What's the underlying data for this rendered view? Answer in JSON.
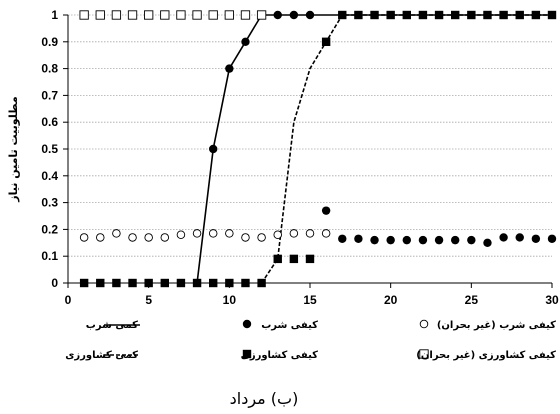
{
  "chart_data": {
    "type": "line",
    "caption": "(ب) مرداد",
    "ylabel": "مطلوبیت تامین نیاز",
    "xlim": [
      0,
      30
    ],
    "ylim": [
      0,
      1
    ],
    "xticks": [
      0,
      5,
      10,
      15,
      20,
      25,
      30
    ],
    "yticks": [
      0,
      0.1,
      0.2,
      0.3,
      0.4,
      0.5,
      0.6,
      0.7,
      0.8,
      0.9,
      1
    ],
    "grid": "horizontal",
    "legend_position": "bottom",
    "series": [
      {
        "name": "کمی شرب",
        "style": "solid-line",
        "color": "#000000",
        "x": [
          8,
          9,
          10,
          11,
          12,
          30
        ],
        "y": [
          0,
          0.5,
          0.8,
          0.9,
          1,
          1
        ]
      },
      {
        "name": "کمی کشاورزی",
        "style": "dashed-line",
        "color": "#000000",
        "x": [
          12,
          13,
          14,
          15,
          16,
          17,
          30
        ],
        "y": [
          0,
          0.09,
          0.6,
          0.8,
          0.9,
          1,
          1
        ]
      },
      {
        "name": "کیفی شرب",
        "style": "filled-circle",
        "color": "#000000",
        "x": [
          9,
          10,
          11,
          12,
          13,
          14,
          15,
          16,
          17,
          18,
          19,
          20,
          21,
          22,
          23,
          24,
          25,
          26,
          27,
          28,
          29,
          30
        ],
        "y": [
          0.5,
          0.8,
          0.9,
          1,
          1,
          1,
          1,
          0.27,
          0.165,
          0.165,
          0.16,
          0.16,
          0.16,
          0.16,
          0.16,
          0.16,
          0.16,
          0.15,
          0.17,
          0.17,
          0.165,
          0.165
        ]
      },
      {
        "name": "کیفی کشاورزی",
        "style": "filled-square",
        "color": "#000000",
        "x": [
          1,
          2,
          3,
          4,
          5,
          6,
          7,
          8,
          9,
          10,
          11,
          12,
          13,
          14,
          15,
          16,
          17,
          18,
          19,
          20,
          21,
          22,
          23,
          24,
          25,
          26,
          27,
          28,
          29,
          30
        ],
        "y": [
          0,
          0,
          0,
          0,
          0,
          0,
          0,
          0,
          0,
          0,
          0,
          0,
          0.09,
          0.09,
          0.09,
          0.9,
          1,
          1,
          1,
          1,
          1,
          1,
          1,
          1,
          1,
          1,
          1,
          1,
          1,
          1
        ]
      },
      {
        "name": "کیفی شرب (غیر بحران)",
        "style": "open-circle",
        "color": "#000000",
        "x": [
          1,
          2,
          3,
          4,
          5,
          6,
          7,
          8,
          9,
          10,
          11,
          12,
          13,
          14,
          15,
          16
        ],
        "y": [
          0.17,
          0.17,
          0.185,
          0.17,
          0.17,
          0.17,
          0.18,
          0.185,
          0.185,
          0.185,
          0.17,
          0.17,
          0.18,
          0.185,
          0.185,
          0.185
        ]
      },
      {
        "name": "کیفی کشاورزی (غیر بحران)",
        "style": "open-square",
        "color": "#000000",
        "x": [
          1,
          2,
          3,
          4,
          5,
          6,
          7,
          8,
          9,
          10,
          11,
          12
        ],
        "y": [
          1,
          1,
          1,
          1,
          1,
          1,
          1,
          1,
          1,
          1,
          1,
          1
        ]
      }
    ]
  }
}
